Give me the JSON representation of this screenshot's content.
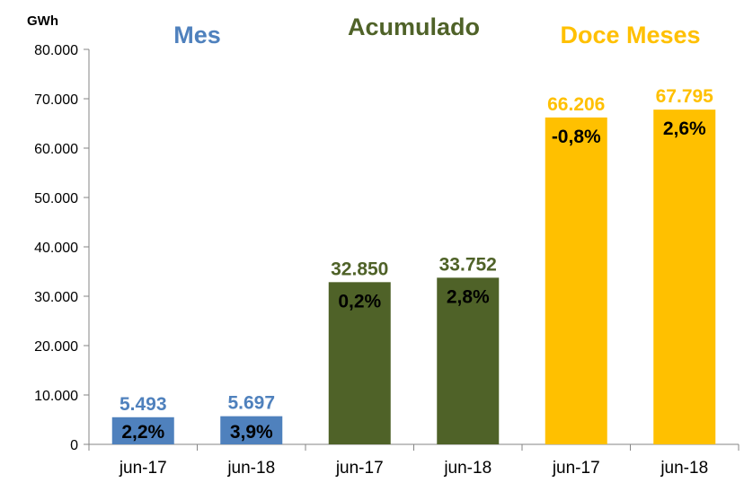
{
  "chart_data": {
    "type": "bar",
    "ylabel": "GWh",
    "ylim": [
      0,
      80000
    ],
    "yticks": [
      "0",
      "10.000",
      "20.000",
      "30.000",
      "40.000",
      "50.000",
      "60.000",
      "70.000",
      "80.000"
    ],
    "grid": false,
    "groups": [
      {
        "title": "Mes",
        "color": "#4F81BD",
        "bars": [
          {
            "category": "jun-17",
            "value": 5493,
            "value_label": "5.493",
            "change": "2,2%"
          },
          {
            "category": "jun-18",
            "value": 5697,
            "value_label": "5.697",
            "change": "3,9%"
          }
        ]
      },
      {
        "title": "Acumulado",
        "color": "#4F6228",
        "bars": [
          {
            "category": "jun-17",
            "value": 32850,
            "value_label": "32.850",
            "change": "0,2%"
          },
          {
            "category": "jun-18",
            "value": 33752,
            "value_label": "33.752",
            "change": "2,8%"
          }
        ]
      },
      {
        "title": "Doce Meses",
        "color": "#FFC000",
        "bars": [
          {
            "category": "jun-17",
            "value": 66206,
            "value_label": "66.206",
            "change": "-0,8%"
          },
          {
            "category": "jun-18",
            "value": 67795,
            "value_label": "67.795",
            "change": "2,6%"
          }
        ]
      }
    ]
  }
}
